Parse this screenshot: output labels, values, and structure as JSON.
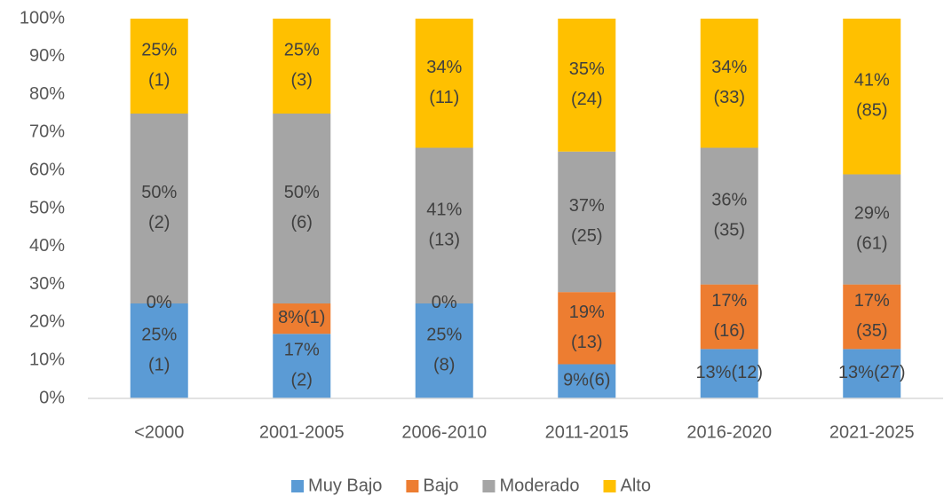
{
  "chart_data": {
    "type": "stacked_bar",
    "categories": [
      "<2000",
      "2001-2005",
      "2006-2010",
      "2011-2015",
      "2016-2020",
      "2021-2025"
    ],
    "series": [
      {
        "name": "Muy Bajo",
        "color": "#5b9bd5",
        "values": [
          25,
          17,
          25,
          9,
          13,
          13
        ],
        "value_labels": [
          "25%\n(1)",
          "17%\n(2)",
          "25%\n(8)",
          "9%(6)",
          "13%(12)",
          "13%(27)"
        ]
      },
      {
        "name": "Bajo",
        "color": "#ed7d31",
        "values": [
          0,
          8,
          0,
          19,
          17,
          17
        ],
        "value_labels": [
          "0%",
          "8%(1)",
          "0%",
          "19%\n(13)",
          "17%\n(16)",
          "17%\n(35)"
        ]
      },
      {
        "name": "Moderado",
        "color": "#a5a5a5",
        "values": [
          50,
          50,
          41,
          37,
          36,
          29
        ],
        "value_labels": [
          "50%\n(2)",
          "50%\n(6)",
          "41%\n(13)",
          "37%\n(25)",
          "36%\n(35)",
          "29%\n(61)"
        ]
      },
      {
        "name": "Alto",
        "color": "#ffc000",
        "values": [
          25,
          25,
          34,
          35,
          34,
          41
        ],
        "value_labels": [
          "25%\n(1)",
          "25%\n(3)",
          "34%\n(11)",
          "35%\n(24)",
          "34%\n(33)",
          "41%\n(85)"
        ]
      }
    ],
    "ylim": [
      0,
      100
    ],
    "yticks": [
      {
        "value": 0,
        "label": "0%"
      },
      {
        "value": 10,
        "label": "10%"
      },
      {
        "value": 20,
        "label": "20%"
      },
      {
        "value": 30,
        "label": "30%"
      },
      {
        "value": 40,
        "label": "40%"
      },
      {
        "value": 50,
        "label": "50%"
      },
      {
        "value": 60,
        "label": "60%"
      },
      {
        "value": 70,
        "label": "70%"
      },
      {
        "value": 80,
        "label": "80%"
      },
      {
        "value": 90,
        "label": "90%"
      },
      {
        "value": 100,
        "label": "100%"
      }
    ],
    "grid": false,
    "legend": "bottom"
  }
}
